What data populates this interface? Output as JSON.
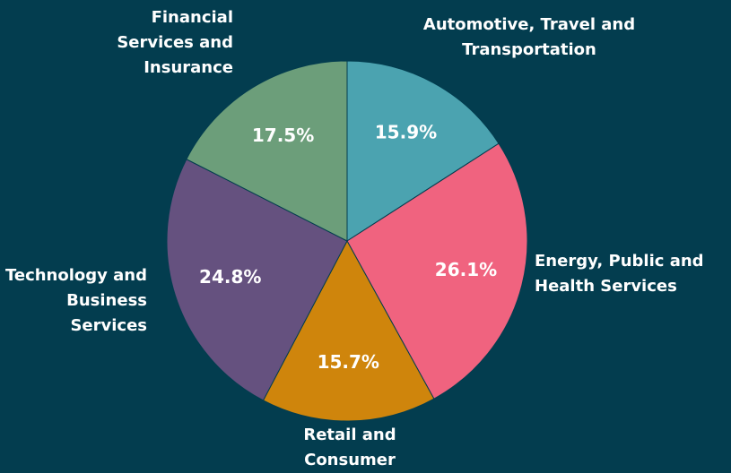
{
  "chart_data": {
    "type": "pie",
    "categories": [
      "Automotive, Travel and Transportation",
      "Energy, Public and Health Services",
      "Retail and Consumer",
      "Technology and Business Services",
      "Financial Services and Insurance"
    ],
    "values": [
      15.9,
      26.1,
      15.7,
      24.8,
      17.5
    ],
    "value_labels": [
      "15.9%",
      "26.1%",
      "15.7%",
      "24.8%",
      "17.5%"
    ],
    "colors": [
      "#4ba3b0",
      "#f0637f",
      "#cf850c",
      "#65517f",
      "#6c9e7a"
    ]
  }
}
